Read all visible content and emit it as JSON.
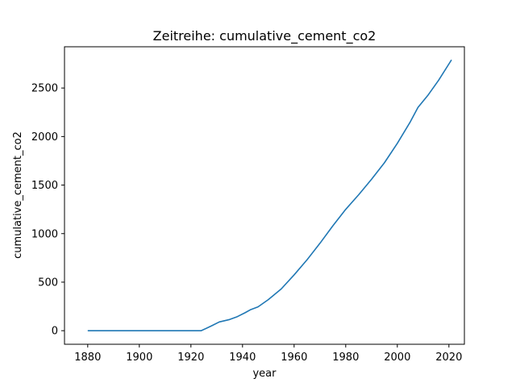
{
  "chart_data": {
    "type": "line",
    "title": "Zeitreihe: cumulative_cement_co2",
    "xlabel": "year",
    "ylabel": "cumulative_cement_co2",
    "xlim": [
      1871,
      2026
    ],
    "ylim": [
      -140,
      2925
    ],
    "xticks": [
      1880,
      1900,
      1920,
      1940,
      1960,
      1980,
      2000,
      2020
    ],
    "yticks": [
      0,
      500,
      1000,
      1500,
      2000,
      2500
    ],
    "grid": false,
    "series": [
      {
        "color": "#1f77b4",
        "x": [
          1880,
          1890,
          1900,
          1910,
          1920,
          1924,
          1928,
          1931,
          1935,
          1938,
          1941,
          1943,
          1946,
          1950,
          1955,
          1960,
          1965,
          1970,
          1975,
          1980,
          1985,
          1990,
          1995,
          2000,
          2005,
          2008,
          2012,
          2016,
          2021
        ],
        "y": [
          0,
          0,
          0,
          0,
          0,
          0,
          50,
          90,
          115,
          145,
          185,
          215,
          245,
          320,
          430,
          575,
          730,
          900,
          1080,
          1250,
          1400,
          1560,
          1730,
          1930,
          2150,
          2300,
          2430,
          2580,
          2790
        ]
      }
    ]
  }
}
